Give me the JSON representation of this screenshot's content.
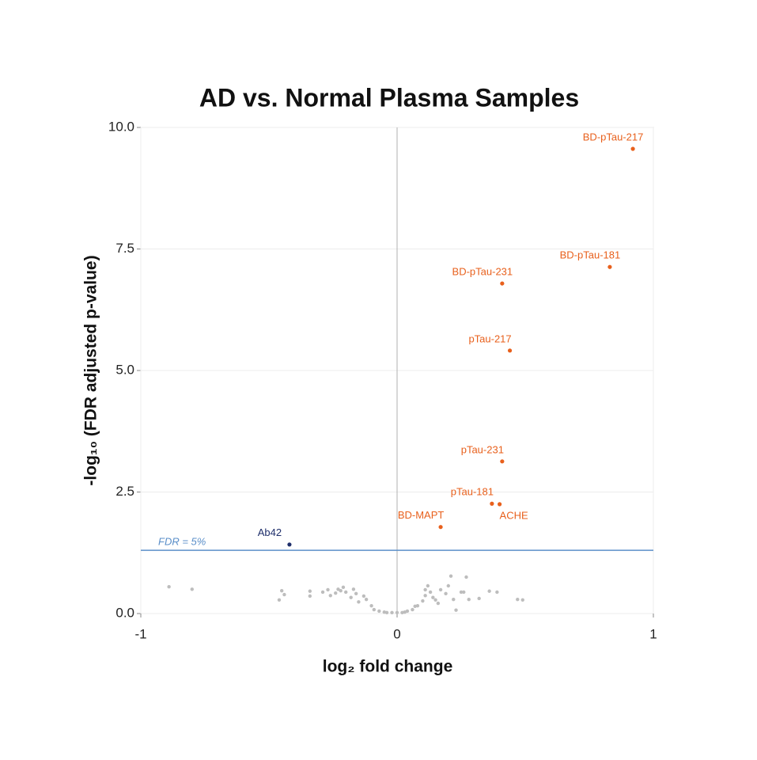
{
  "chart_data": {
    "type": "scatter",
    "title": "AD vs. Normal Plasma Samples",
    "x_label": "log₂ fold change",
    "y_label": "-log₁₀ (FDR adjusted p-value)",
    "xlim": [
      -1,
      1
    ],
    "xticks": [
      -1,
      0,
      1
    ],
    "ylim": [
      0,
      10
    ],
    "yticks": [
      {
        "value": 0,
        "label": "0.0"
      },
      2.5,
      {
        "value": 5,
        "label": "5.0"
      },
      7.5,
      {
        "value": 10,
        "label": "10.0"
      }
    ],
    "grid": true,
    "threshold": {
      "value": 1.3,
      "label": "FDR = 5%",
      "color": "#5b8fc9"
    },
    "series": [
      {
        "color": "#e8601c",
        "x": [
          0.92,
          0.83,
          0.41,
          0.44,
          0.41,
          0.37,
          0.4,
          0.17
        ],
        "values": [
          9.56,
          7.13,
          6.79,
          5.41,
          3.13,
          2.26,
          2.25,
          1.78
        ],
        "labels": [
          "BD-pTau-217",
          "BD-pTau-181",
          "BD-pTau-231",
          "pTau-217",
          "pTau-231",
          "pTau-181",
          "ACHE",
          "BD-MAPT"
        ]
      },
      {
        "color": "#1f2f6b",
        "x": [
          -0.42
        ],
        "values": [
          1.42
        ],
        "labels": [
          "Ab42"
        ]
      },
      {
        "color": "#bdbdbd",
        "x": [
          -0.89,
          -0.8,
          -0.45,
          -0.44,
          -0.46,
          -0.34,
          -0.34,
          -0.29,
          -0.27,
          -0.26,
          -0.24,
          -0.23,
          -0.22,
          -0.21,
          -0.2,
          -0.18,
          -0.17,
          -0.16,
          -0.15,
          -0.13,
          -0.12,
          -0.1,
          -0.09,
          -0.07,
          -0.05,
          -0.04,
          -0.02,
          0.0,
          0.02,
          0.03,
          0.04,
          0.06,
          0.07,
          0.08,
          0.1,
          0.11,
          0.11,
          0.12,
          0.13,
          0.14,
          0.15,
          0.16,
          0.17,
          0.19,
          0.2,
          0.21,
          0.22,
          0.23,
          0.25,
          0.26,
          0.27,
          0.28,
          0.32,
          0.36,
          0.39,
          0.47,
          0.49
        ],
        "values": [
          0.55,
          0.5,
          0.47,
          0.39,
          0.28,
          0.46,
          0.36,
          0.44,
          0.49,
          0.37,
          0.42,
          0.5,
          0.47,
          0.54,
          0.44,
          0.33,
          0.5,
          0.41,
          0.24,
          0.36,
          0.29,
          0.16,
          0.08,
          0.05,
          0.03,
          0.02,
          0.02,
          0.02,
          0.02,
          0.03,
          0.05,
          0.08,
          0.15,
          0.16,
          0.26,
          0.37,
          0.49,
          0.57,
          0.44,
          0.33,
          0.28,
          0.21,
          0.49,
          0.41,
          0.57,
          0.77,
          0.29,
          0.07,
          0.44,
          0.44,
          0.75,
          0.29,
          0.31,
          0.46,
          0.44,
          0.29,
          0.28
        ]
      }
    ]
  }
}
